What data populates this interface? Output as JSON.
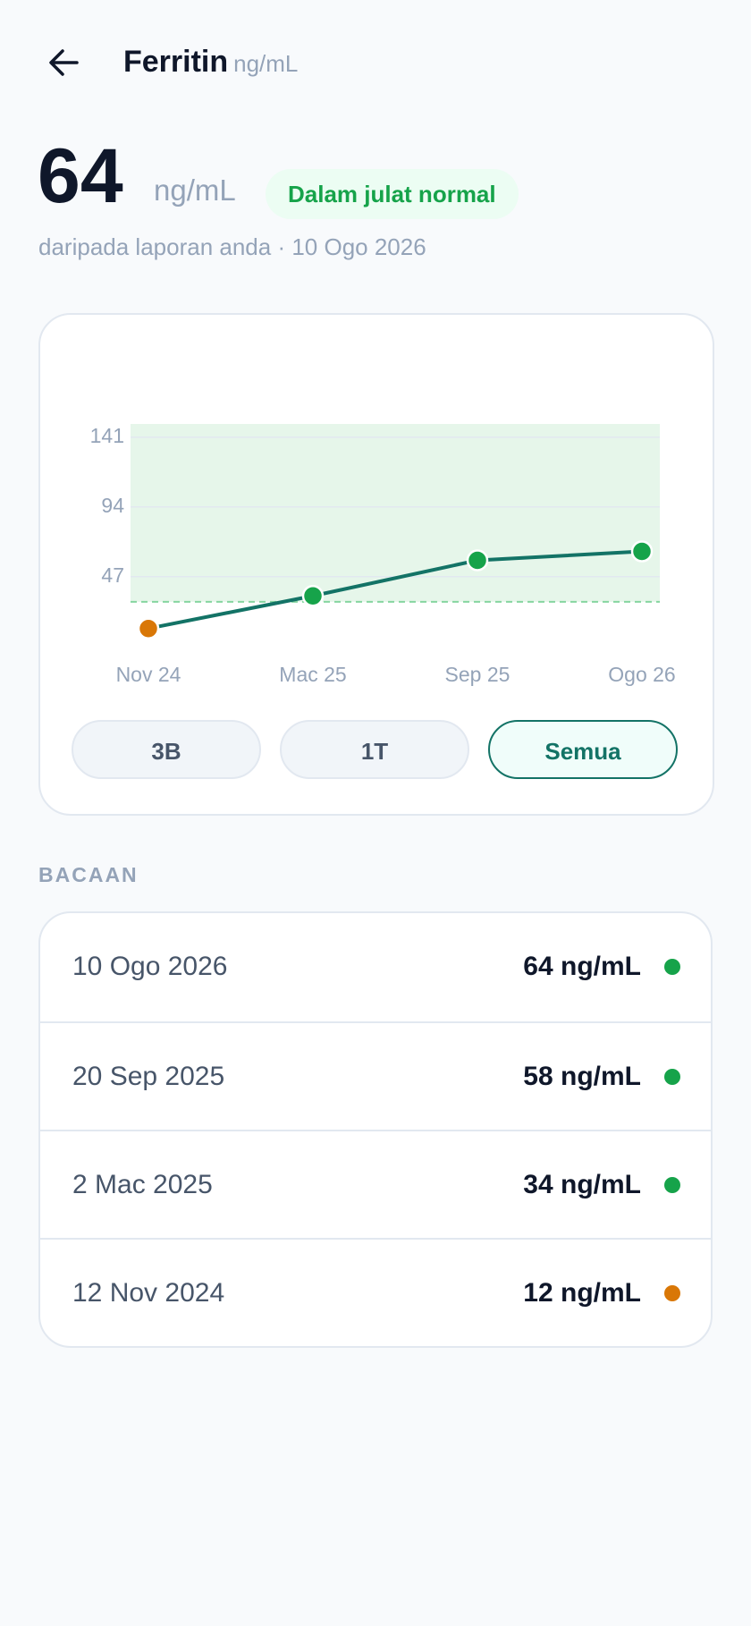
{
  "header": {
    "title": "Ferritin",
    "unit": "ng/mL"
  },
  "summary": {
    "value": "64",
    "unit": "ng/mL",
    "status": "Dalam julat normal",
    "source": "daripada laporan anda · 10 Ogo 2026"
  },
  "chart_data": {
    "type": "line",
    "categories": [
      "Nov 24",
      "Mac 25",
      "Sep 25",
      "Ogo 26"
    ],
    "values": [
      12,
      34,
      58,
      64
    ],
    "color": "#137366",
    "point_colors": [
      "#d97706",
      "#16a34a",
      "#16a34a",
      "#16a34a"
    ],
    "ylim": [
      0,
      150
    ],
    "yticks": [
      47,
      94,
      141
    ],
    "grid": true,
    "normal_range": [
      30,
      150
    ],
    "normal_color": "#e6f6ea"
  },
  "ranges": {
    "options": [
      "3B",
      "1T",
      "Semua"
    ],
    "selected": 2
  },
  "readings": {
    "title": "BACAAN",
    "rows": [
      {
        "date": "10 Ogo 2026",
        "value": "64 ng/mL",
        "color": "#16a34a"
      },
      {
        "date": "20 Sep 2025",
        "value": "58 ng/mL",
        "color": "#16a34a"
      },
      {
        "date": "2 Mac 2025",
        "value": "34 ng/mL",
        "color": "#16a34a"
      },
      {
        "date": "12 Nov 2024",
        "value": "12 ng/mL",
        "color": "#d97706"
      }
    ]
  }
}
